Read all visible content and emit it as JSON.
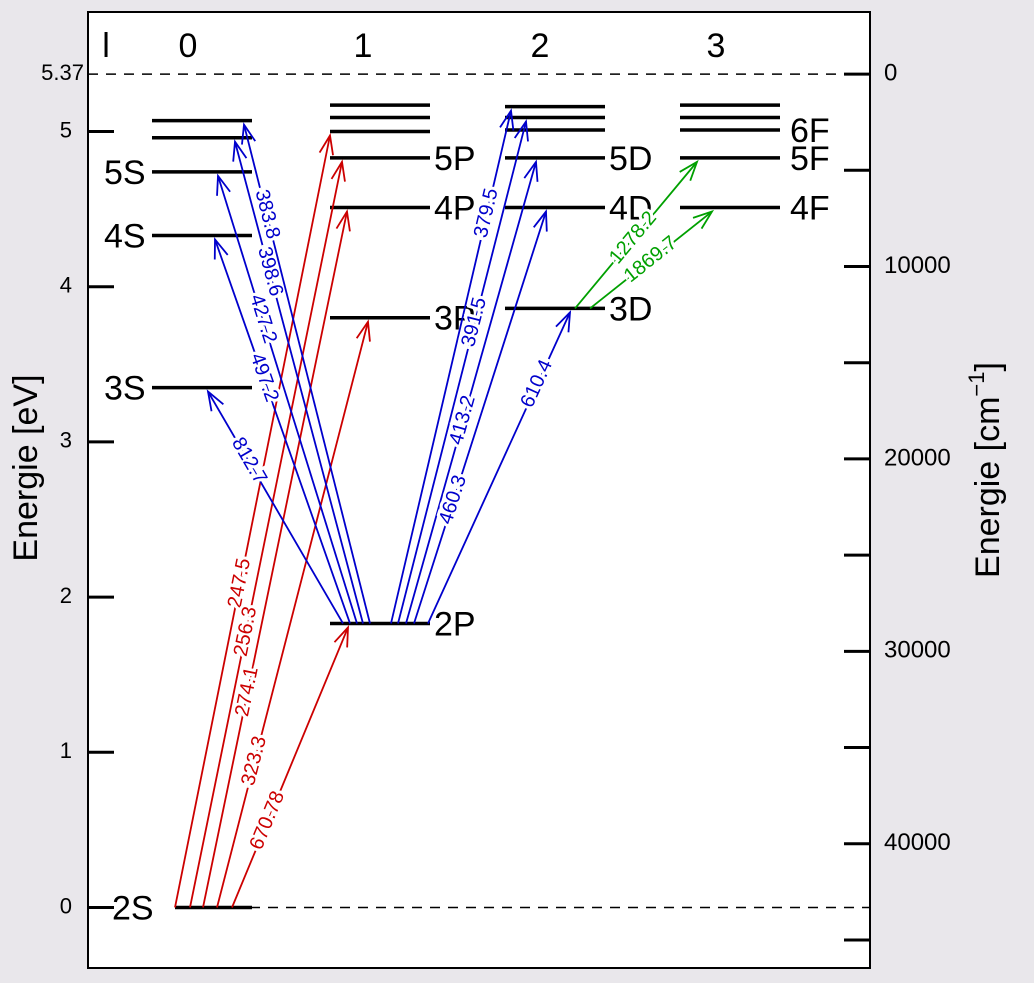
{
  "left_axis": {
    "label": "Energie [eV]",
    "lim": [
      -0.39,
      5.77
    ],
    "ticks": [
      0,
      1,
      2,
      3,
      4,
      5,
      5.37
    ]
  },
  "right_axis": {
    "label": "Energie [cm",
    "label_sup": "−1",
    "label_end": "]",
    "lim": [
      -3226,
      46457
    ],
    "ticks": [
      0,
      10000,
      20000,
      30000,
      40000
    ],
    "minor_ticks": [
      5000,
      15000,
      25000,
      35000,
      45000
    ]
  },
  "column_header": "l",
  "columns": [
    {
      "l": "0",
      "levels": [
        {
          "label": "2S",
          "energy": 0
        },
        {
          "label": "3S",
          "energy": 3.35
        },
        {
          "label": "4S",
          "energy": 4.33
        },
        {
          "label": "5S",
          "energy": 4.74
        },
        {
          "label": null,
          "energy": 4.96
        },
        {
          "label": null,
          "energy": 5.07
        }
      ]
    },
    {
      "l": "1",
      "levels": [
        {
          "label": "2P",
          "energy": 1.83
        },
        {
          "label": "3P",
          "energy": 3.8
        },
        {
          "label": "4P",
          "energy": 4.51
        },
        {
          "label": "5P",
          "energy": 4.83
        },
        {
          "label": null,
          "energy": 5.0
        },
        {
          "label": null,
          "energy": 5.09
        },
        {
          "label": null,
          "energy": 5.17
        }
      ]
    },
    {
      "l": "2",
      "levels": [
        {
          "label": "3D",
          "energy": 3.86
        },
        {
          "label": "4D",
          "energy": 4.51
        },
        {
          "label": "5D",
          "energy": 4.83
        },
        {
          "label": null,
          "energy": 5.01
        },
        {
          "label": null,
          "energy": 5.09
        },
        {
          "label": null,
          "energy": 5.16
        }
      ]
    },
    {
      "l": "3",
      "levels": [
        {
          "label": "4F",
          "energy": 4.51
        },
        {
          "label": "5F",
          "energy": 4.83
        },
        {
          "label": "6F",
          "energy": 5.01
        },
        {
          "label": null,
          "energy": 5.09
        },
        {
          "label": null,
          "energy": 5.17
        }
      ]
    }
  ],
  "transitions": [
    {
      "label": "247.5",
      "color": "#cc0000"
    },
    {
      "label": "256.3",
      "color": "#cc0000"
    },
    {
      "label": "274.1",
      "color": "#cc0000"
    },
    {
      "label": "323.3",
      "color": "#cc0000"
    },
    {
      "label": "670.78",
      "color": "#cc0000"
    },
    {
      "label": "812.7",
      "color": "#0000cc"
    },
    {
      "label": "497.2",
      "color": "#0000cc"
    },
    {
      "label": "427.2",
      "color": "#0000cc"
    },
    {
      "label": "398.6",
      "color": "#0000cc"
    },
    {
      "label": "383.8",
      "color": "#0000cc"
    },
    {
      "label": "379.5",
      "color": "#0000cc"
    },
    {
      "label": "391.5",
      "color": "#0000cc"
    },
    {
      "label": "413.2",
      "color": "#0000cc"
    },
    {
      "label": "460.3",
      "color": "#0000cc"
    },
    {
      "label": "610.4",
      "color": "#0000cc"
    },
    {
      "label": "1278.2",
      "color": "#00a000"
    },
    {
      "label": "1869.7",
      "color": "#00a000"
    }
  ]
}
